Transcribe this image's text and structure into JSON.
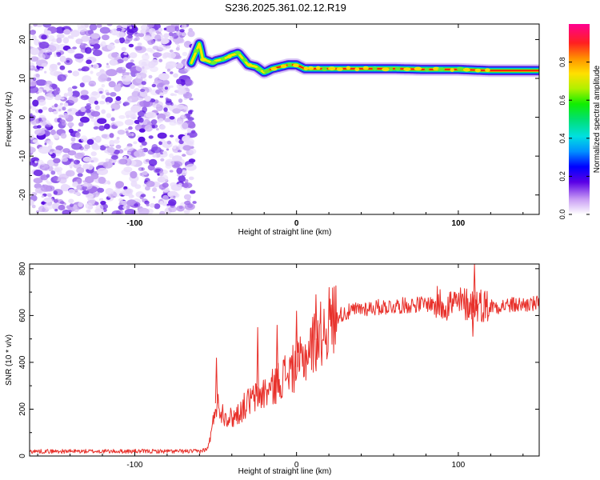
{
  "title": "S236.2025.361.02.12.R19",
  "chart_data": [
    {
      "type": "heatmap",
      "name": "spectrogram",
      "xlabel": "Height of straight line (km)",
      "ylabel": "Frequency (Hz)",
      "xlim": [
        -165,
        150
      ],
      "ylim": [
        -25,
        24
      ],
      "xticks": [
        -100,
        0,
        100
      ],
      "yticks": [
        -20,
        -10,
        0,
        10,
        20
      ],
      "noise_region_x": [
        -165,
        -65
      ],
      "tone_track": {
        "x": [
          -65,
          -62,
          -60,
          -58,
          -55,
          -52,
          -50,
          -45,
          -40,
          -36,
          -33,
          -30,
          -25,
          -20,
          -15,
          -10,
          -5,
          0,
          5,
          10,
          20,
          40,
          60,
          80,
          100,
          120,
          150
        ],
        "freq": [
          14,
          17,
          19,
          15,
          14.5,
          14,
          14.5,
          15,
          16,
          16.5,
          15,
          13.5,
          13,
          11.5,
          12.5,
          13,
          13.5,
          13.5,
          12.5,
          12.5,
          12.5,
          12.5,
          12.5,
          12.3,
          12.3,
          12,
          12
        ]
      },
      "colorbar": {
        "label": "Normalized spectral amplitude",
        "range": [
          0,
          1
        ],
        "ticks": [
          0.0,
          0.2,
          0.4,
          0.6,
          0.8
        ]
      }
    },
    {
      "type": "line",
      "name": "snr",
      "xlabel": "Height of straight line (km)",
      "ylabel": "SNR (10 * v/v)",
      "xlim": [
        -165,
        150
      ],
      "ylim": [
        0,
        820
      ],
      "xticks": [
        -100,
        0,
        100
      ],
      "yticks": [
        0,
        200,
        400,
        600,
        800
      ],
      "line_color": "#e8302a",
      "series": [
        {
          "name": "SNR",
          "x": [
            -165,
            -120,
            -80,
            -60,
            -55,
            -52,
            -50,
            -48,
            -45,
            -40,
            -35,
            -30,
            -25,
            -20,
            -15,
            -10,
            -5,
            0,
            5,
            10,
            15,
            20,
            25,
            30,
            40,
            60,
            80,
            100,
            110,
            120,
            135,
            150
          ],
          "y": [
            20,
            20,
            20,
            20,
            30,
            120,
            230,
            210,
            180,
            160,
            190,
            230,
            250,
            270,
            290,
            330,
            360,
            380,
            420,
            480,
            520,
            570,
            600,
            610,
            630,
            640,
            650,
            650,
            650,
            640,
            645,
            650
          ]
        }
      ],
      "spikes": [
        {
          "x": -49.5,
          "y": 420
        },
        {
          "x": -24,
          "y": 550
        },
        {
          "x": -12,
          "y": 560
        },
        {
          "x": 0,
          "y": 620
        },
        {
          "x": 12,
          "y": 690
        },
        {
          "x": 98,
          "y": 700
        },
        {
          "x": 110,
          "y": 820
        },
        {
          "x": 109,
          "y": 510
        }
      ]
    }
  ]
}
